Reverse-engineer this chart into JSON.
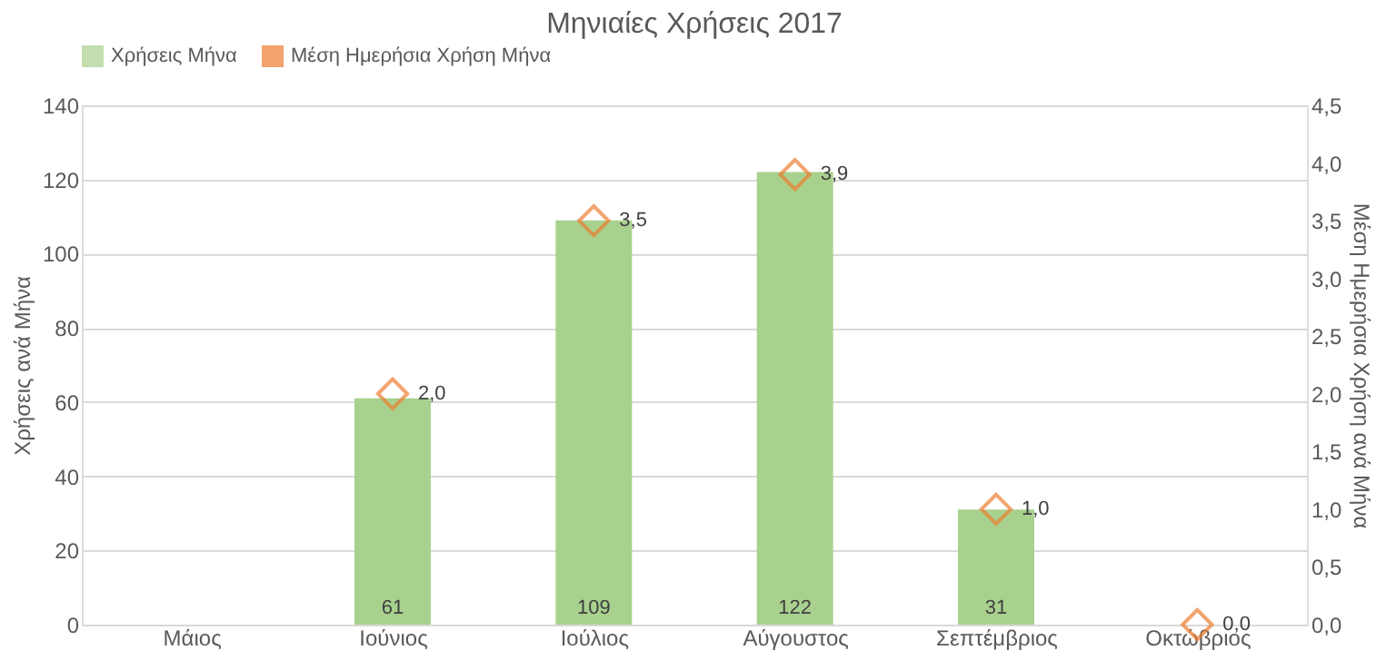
{
  "chart_data": {
    "type": "bar",
    "title": "Μηνιαίες Χρήσεις 2017",
    "categories": [
      "Μάιος",
      "Ιούνιος",
      "Ιούλιος",
      "Αύγουστος",
      "Σεπτέμβριος",
      "Οκτώβριος"
    ],
    "series": [
      {
        "name": "Χρήσεις Μήνα",
        "color": "#a9d18e",
        "values": [
          null,
          61,
          109,
          122,
          31,
          null
        ],
        "value_labels": [
          null,
          "61",
          "109",
          "122",
          "31",
          null
        ]
      },
      {
        "name": "Μέση Ημερήσια Χρήση Μήνα",
        "type": "scatter",
        "axis": "y2",
        "marker": "diamond",
        "color": "#ed7d31",
        "values": [
          null,
          2.0,
          3.5,
          3.9,
          1.0,
          0.0
        ],
        "value_labels": [
          null,
          "2,0",
          "3,5",
          "3,9",
          "1,0",
          "0,0"
        ]
      }
    ],
    "ylabel": "Χρήσεις ανά Μήνα",
    "y2label": "Μέση Ημερήσια Χρήση ανά Μήνα",
    "ylim": [
      0,
      140
    ],
    "yticks": [
      0,
      20,
      40,
      60,
      80,
      100,
      120,
      140
    ],
    "y2lim": [
      0,
      4.5
    ],
    "y2ticks": [
      {
        "value": 0,
        "label": "0,0"
      },
      {
        "value": 0.5,
        "label": "0,5"
      },
      {
        "value": 1,
        "label": "1,0"
      },
      {
        "value": 1.5,
        "label": "1,5"
      },
      {
        "value": 2,
        "label": "2,0"
      },
      {
        "value": 2.5,
        "label": "2,5"
      },
      {
        "value": 3,
        "label": "3,0"
      },
      {
        "value": 3.5,
        "label": "3,5"
      },
      {
        "value": 4,
        "label": "4,0"
      },
      {
        "value": 4.5,
        "label": "4,5"
      }
    ],
    "grid": "y",
    "legend": "top"
  }
}
